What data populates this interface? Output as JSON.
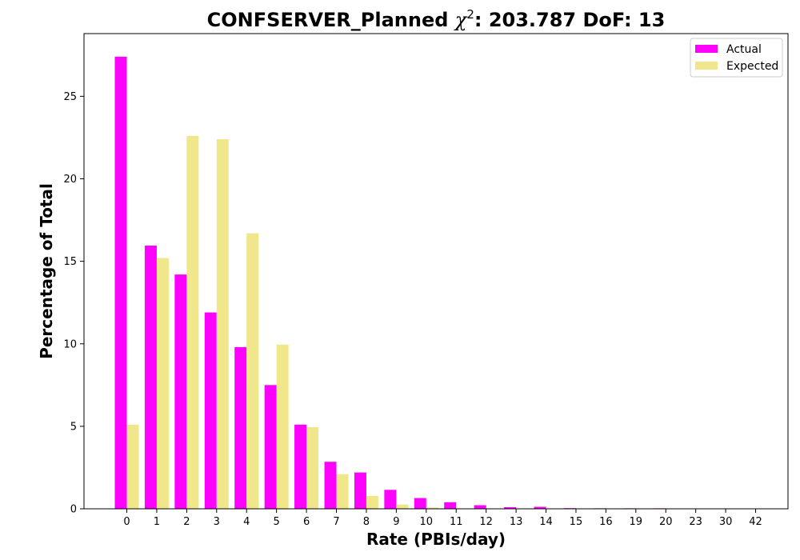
{
  "chart_data": {
    "type": "bar",
    "title_prefix": "CONFSERVER_Planned ",
    "title_symbol": "χ",
    "title_superscript": "2",
    "title_suffix": ": 203.787 DoF: 13",
    "xlabel": "Rate (PBIs/day)",
    "ylabel": "Percentage of Total",
    "categories": [
      "0",
      "1",
      "2",
      "3",
      "4",
      "5",
      "6",
      "7",
      "8",
      "9",
      "10",
      "11",
      "12",
      "13",
      "14",
      "15",
      "16",
      "19",
      "20",
      "23",
      "30",
      "42"
    ],
    "series": [
      {
        "name": "Actual",
        "color": "#ff00ff",
        "values": [
          27.4,
          15.95,
          14.2,
          11.9,
          9.8,
          7.5,
          5.1,
          2.85,
          2.2,
          1.15,
          0.65,
          0.4,
          0.22,
          0.1,
          0.12,
          0.04,
          0.03,
          0.03,
          0.03,
          0.02,
          0.02,
          0.02
        ]
      },
      {
        "name": "Expected",
        "color": "#f0e68c",
        "values": [
          5.1,
          15.2,
          22.6,
          22.4,
          16.7,
          9.95,
          4.95,
          2.1,
          0.78,
          0.26,
          0.08,
          0.02,
          0.01,
          0.0,
          0.0,
          0.0,
          0.0,
          0.0,
          0.0,
          0.0,
          0.0,
          0.0
        ]
      }
    ],
    "yticks": [
      0,
      5,
      10,
      15,
      20,
      25
    ],
    "ylim": [
      0,
      28.8
    ],
    "grid": false,
    "legend_position": "top-right"
  }
}
